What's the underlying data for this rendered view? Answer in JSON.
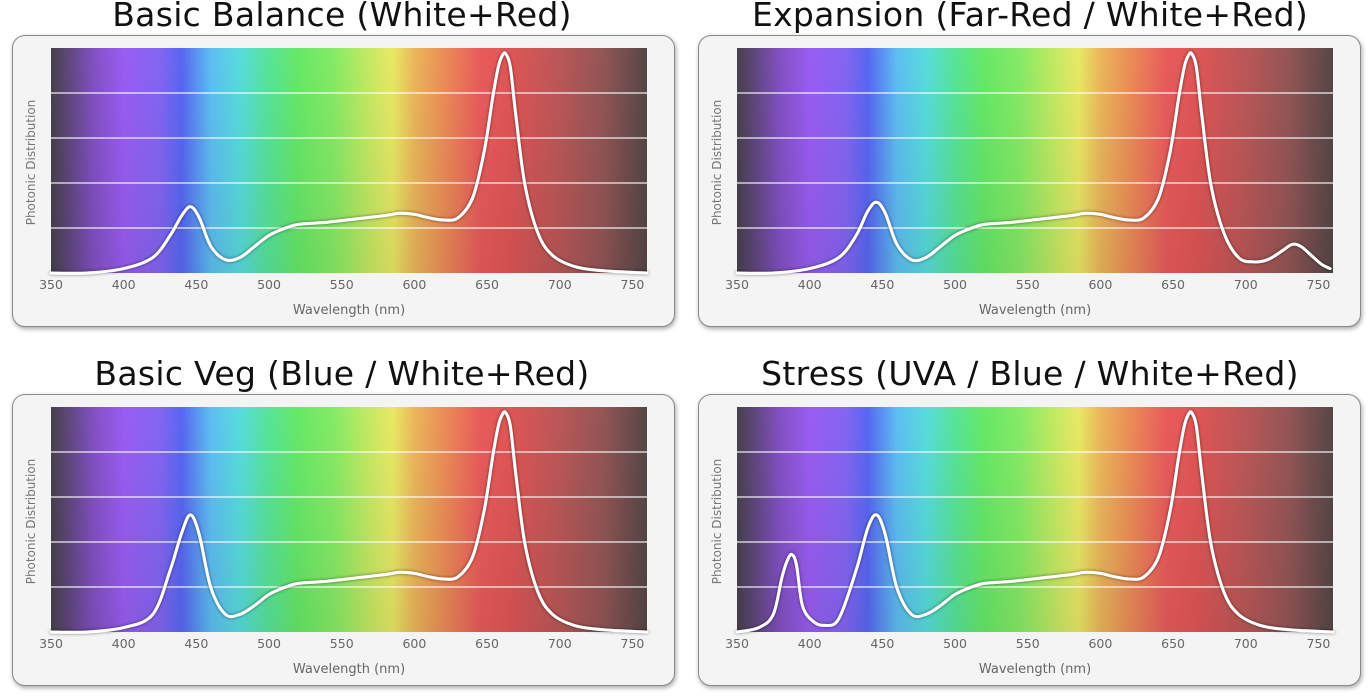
{
  "chart_data": [
    {
      "type": "line",
      "title": "Basic Balance (White+Red)",
      "xlabel": "Wavelength (nm)",
      "ylabel": "Photonic Distribution",
      "xlim": [
        350,
        760
      ],
      "ylim": [
        0,
        1
      ],
      "x_ticks": [
        350,
        400,
        450,
        500,
        550,
        600,
        650,
        700,
        750
      ],
      "grid": true,
      "series": [
        {
          "x": [
            350,
            375,
            400,
            420,
            432,
            440,
            446,
            452,
            460,
            470,
            480,
            490,
            500,
            510,
            520,
            540,
            560,
            580,
            590,
            600,
            610,
            620,
            630,
            640,
            648,
            654,
            658,
            661,
            663,
            666,
            670,
            676,
            685,
            695,
            710,
            730,
            760
          ],
          "y": [
            0.0,
            0.0,
            0.02,
            0.07,
            0.17,
            0.26,
            0.3,
            0.25,
            0.12,
            0.06,
            0.07,
            0.12,
            0.17,
            0.2,
            0.22,
            0.23,
            0.245,
            0.26,
            0.27,
            0.265,
            0.25,
            0.24,
            0.25,
            0.34,
            0.55,
            0.8,
            0.94,
            0.99,
            0.99,
            0.93,
            0.7,
            0.4,
            0.18,
            0.08,
            0.03,
            0.01,
            0.0
          ]
        }
      ]
    },
    {
      "type": "line",
      "title": "Expansion (Far-Red / White+Red)",
      "xlabel": "Wavelength (nm)",
      "ylabel": "Photonic Distribution",
      "xlim": [
        350,
        760
      ],
      "ylim": [
        0,
        1
      ],
      "x_ticks": [
        350,
        400,
        450,
        500,
        550,
        600,
        650,
        700,
        750
      ],
      "grid": true,
      "series": [
        {
          "x": [
            350,
            375,
            400,
            420,
            432,
            440,
            446,
            452,
            460,
            470,
            480,
            490,
            500,
            510,
            520,
            540,
            560,
            580,
            590,
            600,
            610,
            620,
            630,
            640,
            648,
            654,
            658,
            661,
            663,
            666,
            670,
            676,
            685,
            695,
            705,
            715,
            725,
            732,
            738,
            745,
            752,
            758
          ],
          "y": [
            0.0,
            0.0,
            0.02,
            0.07,
            0.17,
            0.28,
            0.32,
            0.27,
            0.13,
            0.06,
            0.07,
            0.12,
            0.17,
            0.2,
            0.22,
            0.23,
            0.245,
            0.26,
            0.27,
            0.265,
            0.25,
            0.24,
            0.25,
            0.34,
            0.55,
            0.8,
            0.94,
            0.99,
            0.99,
            0.93,
            0.7,
            0.4,
            0.18,
            0.07,
            0.05,
            0.06,
            0.1,
            0.13,
            0.12,
            0.08,
            0.04,
            0.02
          ]
        }
      ]
    },
    {
      "type": "line",
      "title": "Basic Veg (Blue / White+Red)",
      "xlabel": "Wavelength (nm)",
      "ylabel": "Photonic Distribution",
      "xlim": [
        350,
        760
      ],
      "ylim": [
        0,
        1
      ],
      "x_ticks": [
        350,
        400,
        450,
        500,
        550,
        600,
        650,
        700,
        750
      ],
      "grid": true,
      "series": [
        {
          "x": [
            350,
            375,
            400,
            420,
            432,
            440,
            446,
            452,
            460,
            470,
            480,
            490,
            500,
            510,
            520,
            540,
            560,
            580,
            590,
            600,
            610,
            620,
            630,
            640,
            648,
            654,
            658,
            661,
            663,
            666,
            670,
            676,
            685,
            695,
            710,
            730,
            760
          ],
          "y": [
            0.0,
            0.0,
            0.02,
            0.08,
            0.28,
            0.45,
            0.53,
            0.44,
            0.2,
            0.08,
            0.08,
            0.12,
            0.17,
            0.2,
            0.22,
            0.23,
            0.245,
            0.26,
            0.27,
            0.265,
            0.25,
            0.24,
            0.25,
            0.34,
            0.55,
            0.8,
            0.94,
            0.99,
            0.99,
            0.93,
            0.7,
            0.4,
            0.18,
            0.08,
            0.03,
            0.01,
            0.0
          ]
        }
      ]
    },
    {
      "type": "line",
      "title": "Stress (UVA / Blue / White+Red)",
      "xlabel": "Wavelength (nm)",
      "ylabel": "Photonic Distribution",
      "xlim": [
        350,
        760
      ],
      "ylim": [
        0,
        1
      ],
      "x_ticks": [
        350,
        400,
        450,
        500,
        550,
        600,
        650,
        700,
        750
      ],
      "grid": true,
      "series": [
        {
          "x": [
            350,
            365,
            375,
            381,
            385,
            388,
            391,
            395,
            402,
            410,
            420,
            432,
            440,
            446,
            452,
            460,
            470,
            480,
            490,
            500,
            510,
            520,
            540,
            560,
            580,
            590,
            600,
            610,
            620,
            630,
            640,
            648,
            654,
            658,
            661,
            663,
            666,
            670,
            676,
            685,
            695,
            710,
            730,
            760
          ],
          "y": [
            0.0,
            0.02,
            0.08,
            0.25,
            0.33,
            0.35,
            0.3,
            0.12,
            0.05,
            0.03,
            0.06,
            0.28,
            0.47,
            0.53,
            0.44,
            0.2,
            0.08,
            0.08,
            0.12,
            0.17,
            0.2,
            0.22,
            0.23,
            0.245,
            0.26,
            0.27,
            0.265,
            0.25,
            0.24,
            0.25,
            0.34,
            0.55,
            0.8,
            0.94,
            0.99,
            0.99,
            0.93,
            0.7,
            0.4,
            0.18,
            0.08,
            0.03,
            0.01,
            0.0
          ]
        }
      ]
    }
  ]
}
